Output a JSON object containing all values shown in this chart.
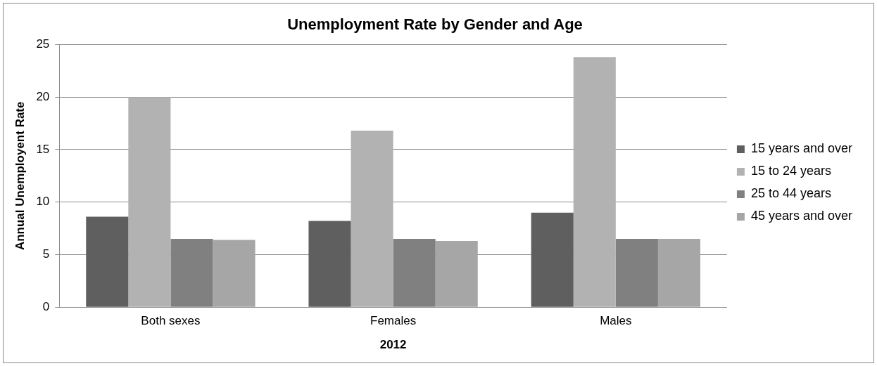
{
  "chart_data": {
    "type": "bar",
    "title": "Unemployment Rate by Gender and Age",
    "xlabel": "2012",
    "ylabel": "Annual Unemployent Rate",
    "categories": [
      "Both sexes",
      "Females",
      "Males"
    ],
    "series": [
      {
        "name": "15 years and over",
        "color": "#5f5f5f",
        "values": [
          8.6,
          8.2,
          9.0
        ]
      },
      {
        "name": "15 to 24 years",
        "color": "#b2b2b2",
        "values": [
          20.0,
          16.8,
          23.8
        ]
      },
      {
        "name": "25 to 44 years",
        "color": "#808080",
        "values": [
          6.5,
          6.5,
          6.5
        ]
      },
      {
        "name": "45 years and over",
        "color": "#a6a6a6",
        "values": [
          6.4,
          6.3,
          6.5
        ]
      }
    ],
    "ylim": [
      0,
      25
    ],
    "yticks": [
      0,
      5,
      10,
      15,
      20,
      25
    ],
    "grid": "y",
    "legend": "right"
  }
}
